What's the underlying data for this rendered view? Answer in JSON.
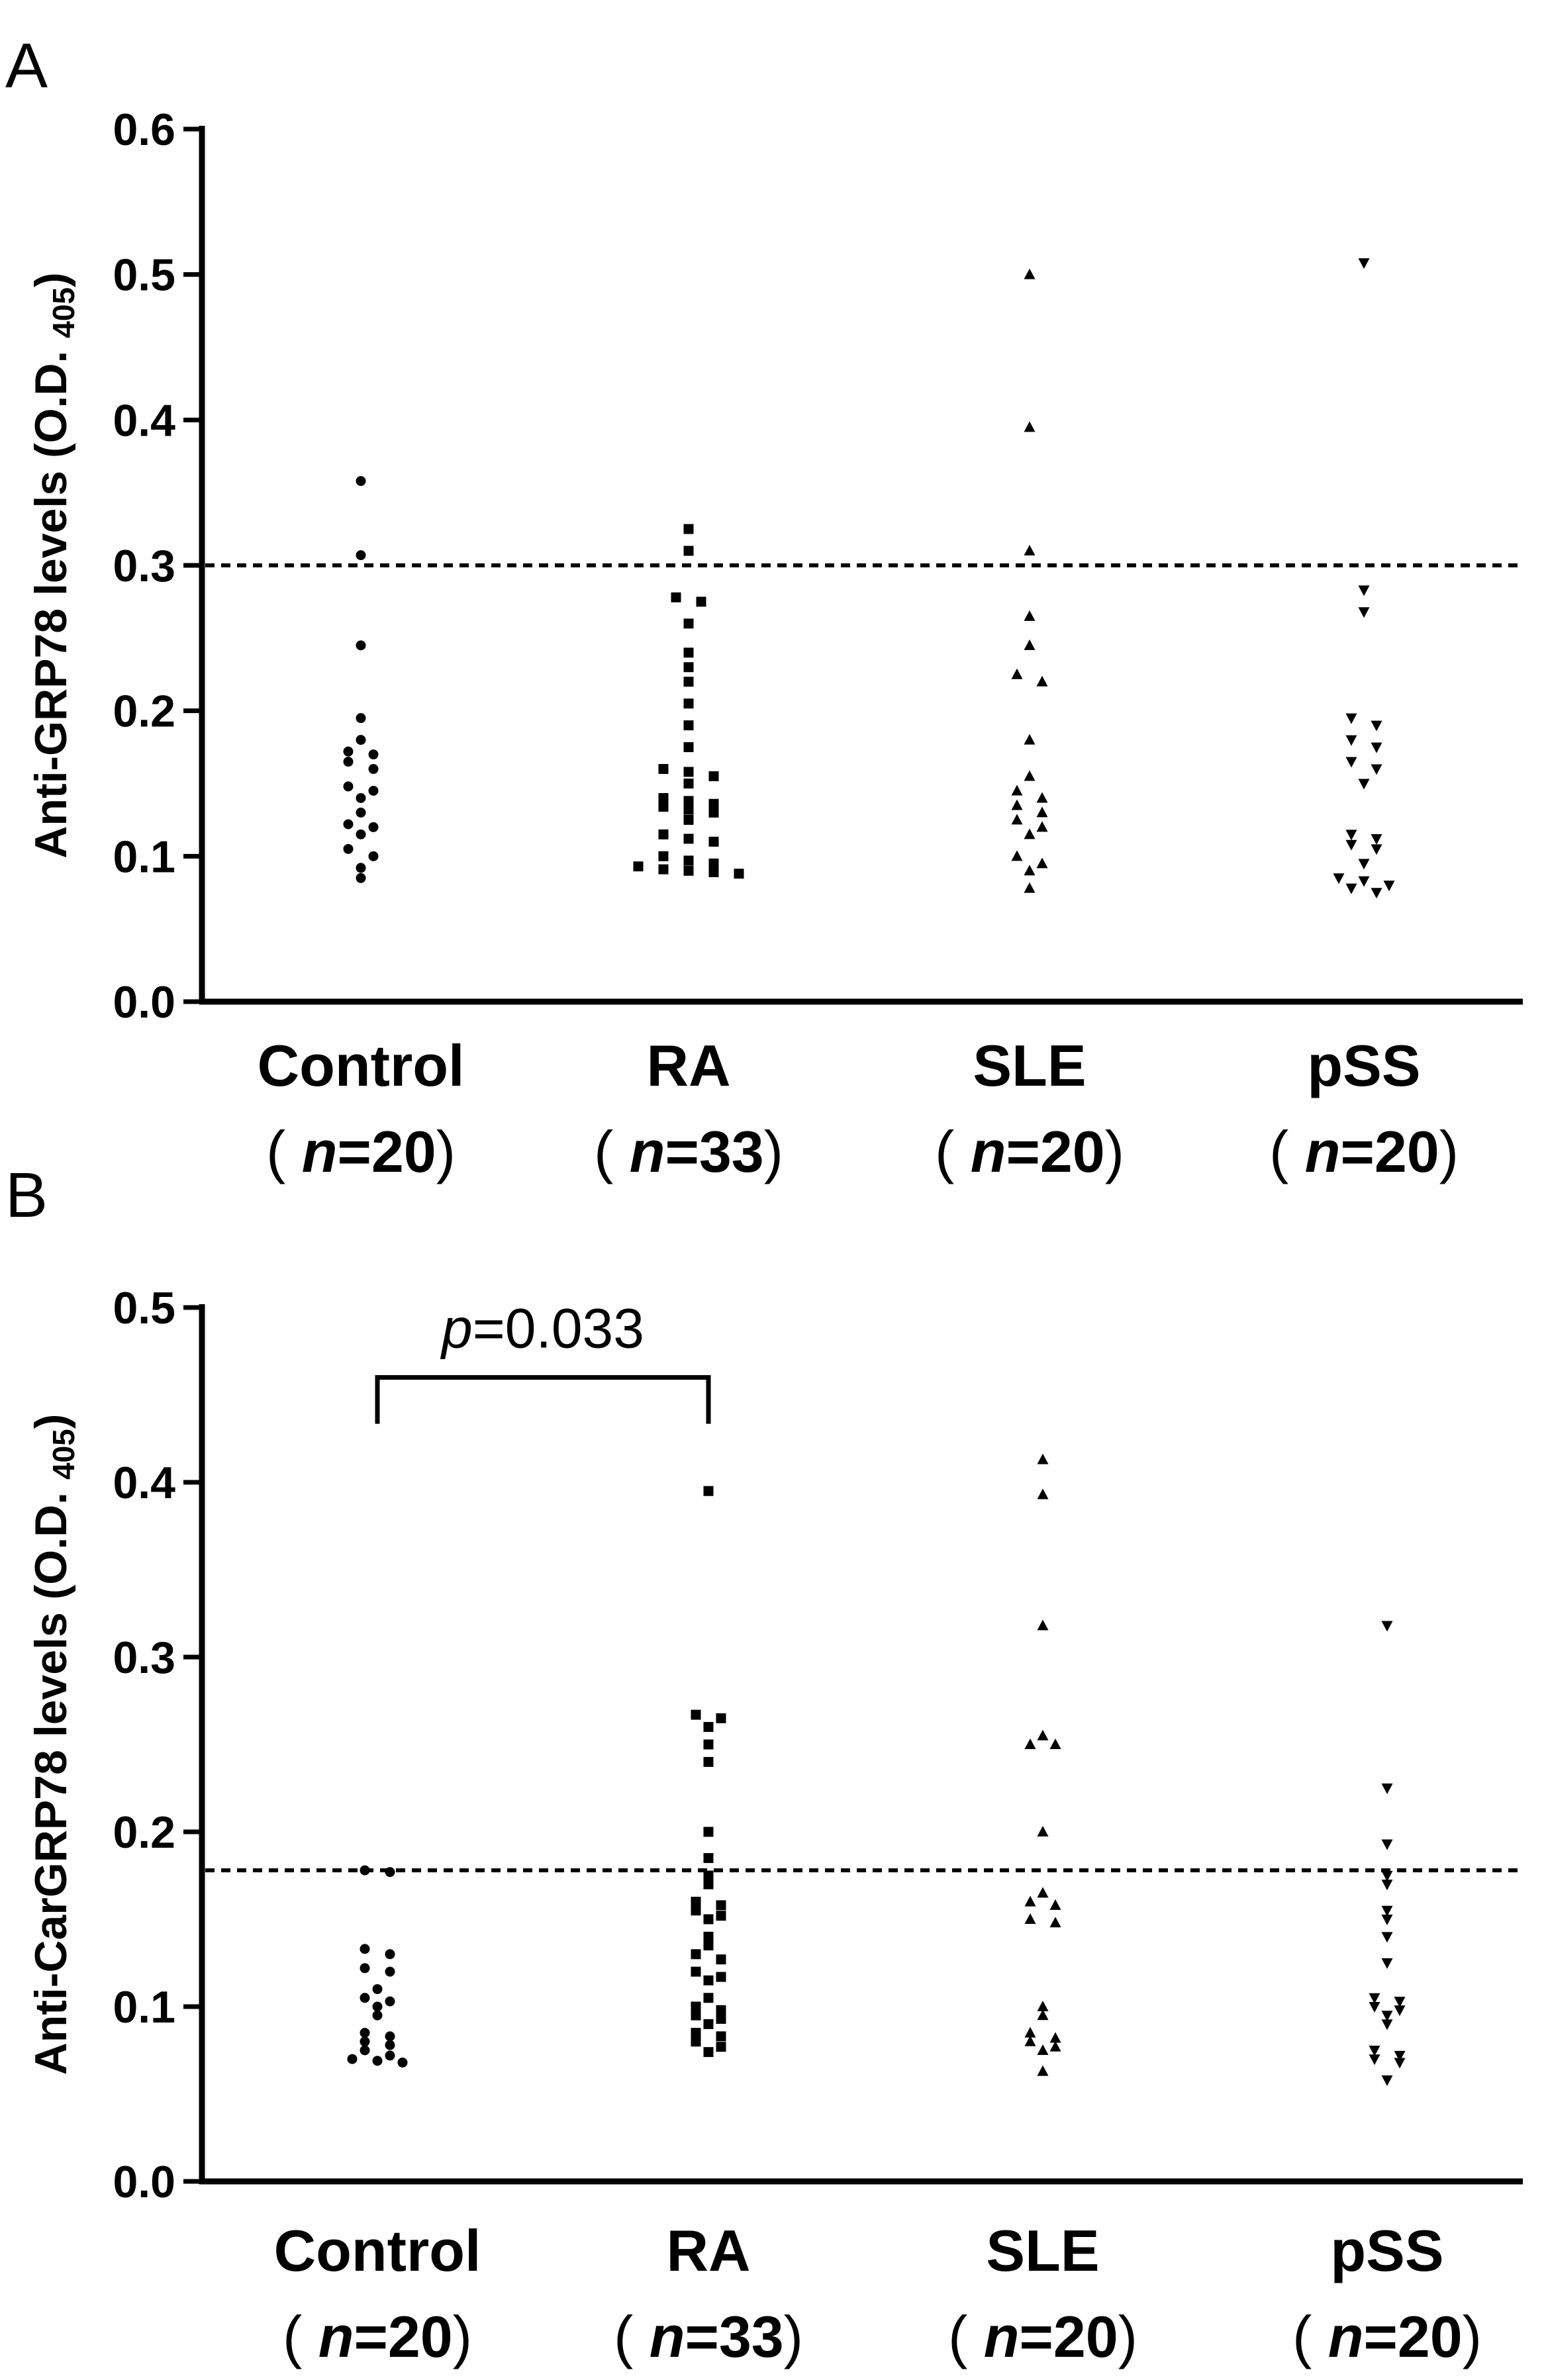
{
  "chart_data": [
    {
      "type": "scatter",
      "panel": "A",
      "ylabel": {
        "main": "Anti-GRP78 levels (O.D.",
        "sub": "405",
        "close": ")"
      },
      "ylim": [
        0,
        0.6
      ],
      "yticks": [
        "0.0",
        "0.1",
        "0.2",
        "0.3",
        "0.4",
        "0.5",
        "0.6"
      ],
      "threshold": 0.3,
      "categories": [
        {
          "name": "Control",
          "n_text": "n",
          "n_value": "=20",
          "open": "(",
          "close": ")"
        },
        {
          "name": "RA",
          "n_text": "n",
          "n_value": "=33",
          "open": "(",
          "close": ")"
        },
        {
          "name": "SLE",
          "n_text": "n",
          "n_value": "=20",
          "open": "(",
          "close": ")"
        },
        {
          "name": "pSS",
          "n_text": "n",
          "n_value": "=20",
          "open": "(",
          "close": ")"
        }
      ],
      "series": [
        {
          "marker": "circle",
          "values": [
            0.358,
            0.307,
            0.245,
            0.195,
            0.18,
            0.172,
            0.17,
            0.165,
            0.16,
            0.148,
            0.145,
            0.14,
            0.13,
            0.122,
            0.12,
            0.115,
            0.105,
            0.1,
            0.092,
            0.085
          ]
        },
        {
          "marker": "square",
          "values": [
            0.325,
            0.31,
            0.278,
            0.275,
            0.26,
            0.24,
            0.23,
            0.22,
            0.205,
            0.19,
            0.175,
            0.16,
            0.158,
            0.155,
            0.15,
            0.14,
            0.138,
            0.136,
            0.134,
            0.132,
            0.13,
            0.125,
            0.115,
            0.112,
            0.11,
            0.1,
            0.097,
            0.095,
            0.093,
            0.091,
            0.09,
            0.089,
            0.088
          ]
        },
        {
          "marker": "triangle-up",
          "values": [
            0.5,
            0.395,
            0.31,
            0.265,
            0.245,
            0.225,
            0.22,
            0.18,
            0.155,
            0.145,
            0.14,
            0.135,
            0.13,
            0.125,
            0.12,
            0.115,
            0.1,
            0.095,
            0.09,
            0.078
          ]
        },
        {
          "marker": "triangle-down",
          "values": [
            0.508,
            0.283,
            0.268,
            0.195,
            0.19,
            0.18,
            0.175,
            0.165,
            0.16,
            0.15,
            0.115,
            0.112,
            0.108,
            0.105,
            0.095,
            0.085,
            0.083,
            0.08,
            0.078,
            0.075
          ]
        }
      ]
    },
    {
      "type": "scatter",
      "panel": "B",
      "ylabel": {
        "main": "Anti-CarGRP78 levels (O.D.",
        "sub": "405",
        "close": ")"
      },
      "ylim": [
        0,
        0.5
      ],
      "yticks": [
        "0.0",
        "0.1",
        "0.2",
        "0.3",
        "0.4",
        "0.5"
      ],
      "threshold": 0.178,
      "annotation": {
        "p_symbol": "p",
        "p_value": "=0.033",
        "from_category": 0,
        "to_category": 1,
        "level": 0.46
      },
      "categories": [
        {
          "name": "Control",
          "n_text": "n",
          "n_value": "=20",
          "open": "(",
          "close": ")"
        },
        {
          "name": "RA",
          "n_text": "n",
          "n_value": "=33",
          "open": "(",
          "close": ")"
        },
        {
          "name": "SLE",
          "n_text": "n",
          "n_value": "=20",
          "open": "(",
          "close": ")"
        },
        {
          "name": "pSS",
          "n_text": "n",
          "n_value": "=20",
          "open": "(",
          "close": ")"
        }
      ],
      "series": [
        {
          "marker": "circle",
          "values": [
            0.178,
            0.177,
            0.133,
            0.13,
            0.122,
            0.12,
            0.11,
            0.105,
            0.103,
            0.1,
            0.095,
            0.085,
            0.083,
            0.08,
            0.078,
            0.075,
            0.072,
            0.07,
            0.069,
            0.068
          ]
        },
        {
          "marker": "square",
          "values": [
            0.395,
            0.267,
            0.265,
            0.26,
            0.25,
            0.24,
            0.2,
            0.185,
            0.175,
            0.17,
            0.16,
            0.158,
            0.155,
            0.152,
            0.15,
            0.14,
            0.135,
            0.13,
            0.127,
            0.12,
            0.117,
            0.115,
            0.105,
            0.1,
            0.098,
            0.095,
            0.093,
            0.09,
            0.085,
            0.083,
            0.08,
            0.077,
            0.074
          ]
        },
        {
          "marker": "triangle-up",
          "values": [
            0.413,
            0.393,
            0.318,
            0.255,
            0.25,
            0.25,
            0.2,
            0.165,
            0.16,
            0.158,
            0.15,
            0.148,
            0.1,
            0.095,
            0.085,
            0.082,
            0.08,
            0.077,
            0.075,
            0.063
          ]
        },
        {
          "marker": "triangle-down",
          "values": [
            0.318,
            0.225,
            0.193,
            0.175,
            0.17,
            0.155,
            0.15,
            0.14,
            0.125,
            0.105,
            0.103,
            0.1,
            0.098,
            0.095,
            0.09,
            0.075,
            0.072,
            0.07,
            0.068,
            0.058
          ]
        }
      ]
    }
  ]
}
